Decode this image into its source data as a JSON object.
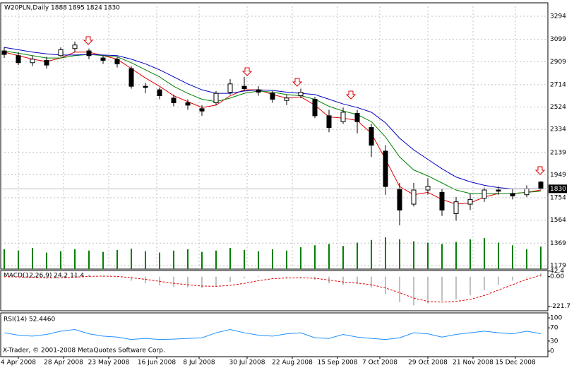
{
  "chart_data": [
    {
      "type": "candlestick",
      "title": "W20PLN,Daily",
      "x": [
        0,
        5,
        10,
        15,
        20,
        25,
        30,
        35,
        40,
        45,
        50,
        55,
        60,
        65,
        70,
        75,
        80,
        85,
        90,
        95,
        100,
        105,
        110,
        115,
        120,
        125,
        130,
        135,
        140,
        145,
        150,
        155,
        160,
        165,
        170,
        175,
        180,
        185,
        190
      ],
      "open": [
        3000,
        2960,
        2900,
        2920,
        2960,
        3020,
        3000,
        2940,
        2930,
        2850,
        2700,
        2670,
        2600,
        2560,
        2510,
        2560,
        2650,
        2700,
        2670,
        2640,
        2580,
        2620,
        2590,
        2450,
        2400,
        2470,
        2350,
        2150,
        1830,
        1700,
        1820,
        1800,
        1620,
        1700,
        1750,
        1820,
        1790,
        1780,
        1888
      ],
      "high": [
        3030,
        2990,
        2960,
        2950,
        3030,
        3080,
        3020,
        2960,
        2950,
        2870,
        2730,
        2690,
        2630,
        2590,
        2540,
        2660,
        2760,
        2780,
        2700,
        2660,
        2630,
        2680,
        2610,
        2500,
        2520,
        2500,
        2380,
        2200,
        1880,
        1880,
        1920,
        1830,
        1760,
        1790,
        1840,
        1850,
        1830,
        1860,
        1895
      ],
      "low": [
        2940,
        2880,
        2870,
        2850,
        2950,
        2990,
        2930,
        2890,
        2860,
        2680,
        2640,
        2590,
        2530,
        2500,
        2450,
        2540,
        2630,
        2660,
        2620,
        2560,
        2540,
        2600,
        2430,
        2310,
        2380,
        2300,
        2100,
        1780,
        1520,
        1680,
        1780,
        1600,
        1560,
        1650,
        1720,
        1780,
        1740,
        1760,
        1824
      ],
      "close": [
        2970,
        2900,
        2930,
        2880,
        3010,
        3050,
        2960,
        2920,
        2890,
        2700,
        2690,
        2620,
        2560,
        2540,
        2490,
        2640,
        2720,
        2680,
        2650,
        2590,
        2600,
        2650,
        2450,
        2350,
        2480,
        2400,
        2200,
        1850,
        1650,
        1820,
        1850,
        1650,
        1720,
        1740,
        1820,
        1810,
        1770,
        1830,
        1830
      ],
      "ma_lines": [
        {
          "color": "#e00000",
          "values": [
            2990,
            2960,
            2930,
            2910,
            2940,
            2990,
            2990,
            2960,
            2930,
            2850,
            2770,
            2700,
            2620,
            2570,
            2520,
            2540,
            2620,
            2670,
            2670,
            2630,
            2600,
            2610,
            2540,
            2440,
            2430,
            2410,
            2300,
            2080,
            1850,
            1780,
            1800,
            1740,
            1700,
            1710,
            1760,
            1790,
            1790,
            1800,
            1820
          ]
        },
        {
          "color": "#008000",
          "values": [
            3000,
            2980,
            2960,
            2940,
            2940,
            2960,
            2970,
            2960,
            2950,
            2900,
            2840,
            2780,
            2700,
            2640,
            2590,
            2570,
            2600,
            2640,
            2660,
            2650,
            2630,
            2620,
            2590,
            2530,
            2490,
            2460,
            2400,
            2270,
            2100,
            1990,
            1940,
            1880,
            1820,
            1790,
            1790,
            1790,
            1790,
            1800,
            1810
          ]
        },
        {
          "color": "#0000c0",
          "values": [
            3030,
            3010,
            2990,
            2975,
            2965,
            2965,
            2970,
            2965,
            2960,
            2930,
            2890,
            2840,
            2780,
            2720,
            2670,
            2640,
            2640,
            2660,
            2670,
            2665,
            2650,
            2640,
            2630,
            2590,
            2550,
            2520,
            2480,
            2390,
            2260,
            2160,
            2080,
            2000,
            1930,
            1890,
            1860,
            1840,
            1830,
            1830,
            1830
          ]
        }
      ],
      "volume": {
        "color": "#008000",
        "values": [
          30,
          28,
          32,
          25,
          27,
          30,
          28,
          26,
          29,
          31,
          27,
          25,
          28,
          30,
          26,
          28,
          32,
          29,
          27,
          30,
          28,
          33,
          36,
          38,
          35,
          40,
          44,
          48,
          45,
          42,
          40,
          38,
          41,
          45,
          47,
          40,
          36,
          30,
          34
        ]
      },
      "xlim": [
        -1.25,
        192.5
      ],
      "xticks": [
        {
          "value": 5,
          "label": "4 Apr 2008"
        },
        {
          "value": 21,
          "label": "28 Apr 2008"
        },
        {
          "value": 37,
          "label": "23 May 2008"
        },
        {
          "value": 54,
          "label": "16 Jun 2008"
        },
        {
          "value": 69,
          "label": "8 Jul 2008"
        },
        {
          "value": 86,
          "label": "30 Jul 2008"
        },
        {
          "value": 102,
          "label": "22 Aug 2008"
        },
        {
          "value": 118,
          "label": "15 Sep 2008"
        },
        {
          "value": 133,
          "label": "7 Oct 2008"
        },
        {
          "value": 150,
          "label": "29 Oct 2008"
        },
        {
          "value": 166,
          "label": "21 Nov 2008"
        },
        {
          "value": 181,
          "label": "15 Dec 2008"
        }
      ],
      "ylim": [
        1149,
        3408
      ],
      "yticks": [
        3294,
        3099,
        2909,
        2714,
        2524,
        2334,
        2139,
        1949,
        1754,
        1564,
        1369,
        1179
      ],
      "grid": true
    },
    {
      "type": "macd",
      "title": "MACD(12,26,9) 24.2 11.4",
      "histogram": {
        "color": "#c0c0c0",
        "values": [
          5,
          -5,
          -10,
          -15,
          -5,
          10,
          15,
          5,
          -5,
          -30,
          -50,
          -65,
          -75,
          -80,
          -85,
          -70,
          -40,
          -10,
          5,
          0,
          -10,
          -10,
          -25,
          -50,
          -60,
          -55,
          -80,
          -130,
          -190,
          -215,
          -200,
          -180,
          -170,
          -140,
          -100,
          -60,
          -30,
          -5,
          24.2
        ]
      },
      "signal": {
        "color": "#e00000",
        "values": [
          0,
          -2,
          -5,
          -8,
          -8,
          -4,
          2,
          4,
          2,
          -8,
          -20,
          -35,
          -50,
          -60,
          -70,
          -72,
          -65,
          -50,
          -30,
          -15,
          -10,
          -8,
          -12,
          -25,
          -40,
          -48,
          -60,
          -85,
          -120,
          -160,
          -185,
          -190,
          -185,
          -170,
          -140,
          -100,
          -60,
          -20,
          11.4
        ]
      },
      "ylim": [
        -255,
        46
      ],
      "yticks": [
        42.4,
        {
          "value": 0,
          "label": "0.00"
        },
        -221.7
      ]
    },
    {
      "type": "rsi",
      "title": "RSI(14) 52.4460",
      "line": {
        "color": "#1e90ff",
        "values": [
          55,
          48,
          45,
          50,
          60,
          65,
          52,
          45,
          42,
          35,
          38,
          35,
          36,
          38,
          40,
          55,
          65,
          55,
          48,
          45,
          52,
          55,
          40,
          38,
          50,
          42,
          38,
          35,
          40,
          55,
          52,
          42,
          50,
          55,
          60,
          55,
          52,
          60,
          52.4
        ]
      },
      "ylim": [
        -17,
        115
      ],
      "yticks": [
        100,
        70,
        30,
        0
      ],
      "footer": "X-Trader, © 2001-2008 MetaQuotes Software Corp."
    }
  ]
}
